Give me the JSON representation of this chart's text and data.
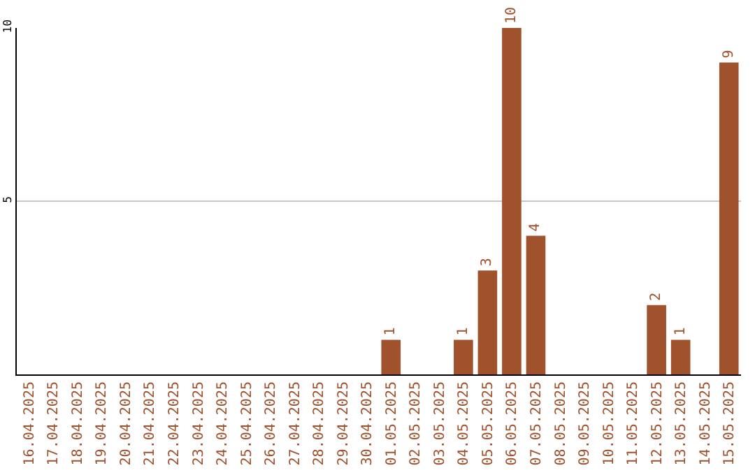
{
  "chart_data": {
    "type": "bar",
    "categories": [
      "16.04.2025",
      "17.04.2025",
      "18.04.2025",
      "19.04.2025",
      "20.04.2025",
      "21.04.2025",
      "22.04.2025",
      "23.04.2025",
      "24.04.2025",
      "25.04.2025",
      "26.04.2025",
      "27.04.2025",
      "28.04.2025",
      "29.04.2025",
      "30.04.2025",
      "01.05.2025",
      "02.05.2025",
      "03.05.2025",
      "04.05.2025",
      "05.05.2025",
      "06.05.2025",
      "07.05.2025",
      "08.05.2025",
      "09.05.2025",
      "10.05.2025",
      "11.05.2025",
      "12.05.2025",
      "13.05.2025",
      "14.05.2025",
      "15.05.2025"
    ],
    "values": [
      0,
      0,
      0,
      0,
      0,
      0,
      0,
      0,
      0,
      0,
      0,
      0,
      0,
      0,
      0,
      1,
      0,
      0,
      1,
      3,
      10,
      4,
      0,
      0,
      0,
      0,
      2,
      1,
      0,
      9
    ],
    "value_labels": [
      null,
      null,
      null,
      null,
      null,
      null,
      null,
      null,
      null,
      null,
      null,
      null,
      null,
      null,
      null,
      "1",
      null,
      null,
      "1",
      "3",
      "10",
      "4",
      null,
      null,
      null,
      null,
      "2",
      "1",
      null,
      "9"
    ],
    "color": "#a0522d",
    "ylim": [
      0,
      10
    ],
    "yticks": [
      5,
      10
    ],
    "grid": "y"
  }
}
